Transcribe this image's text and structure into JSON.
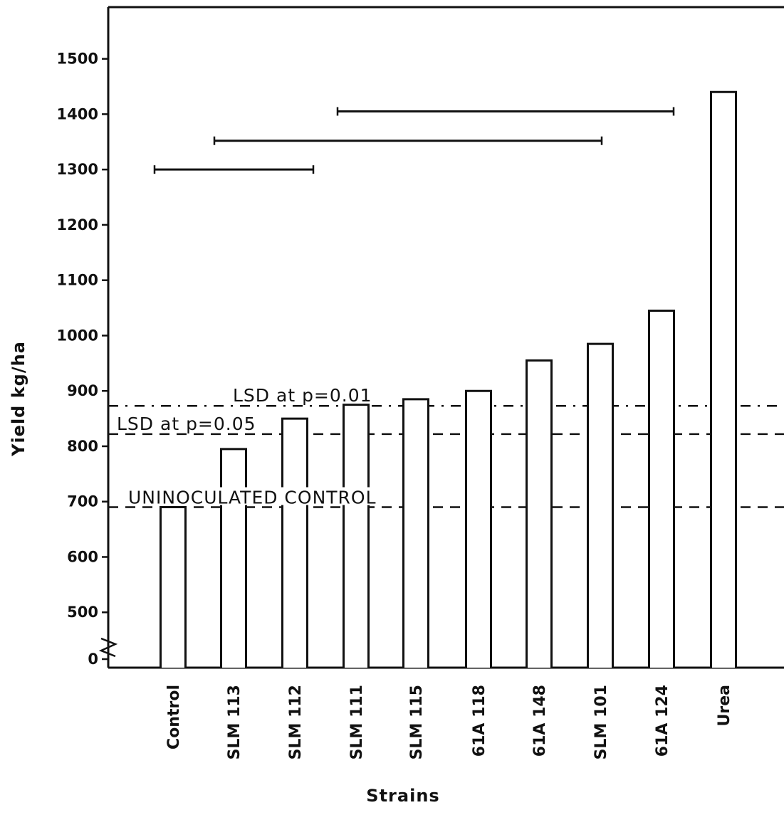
{
  "chart_data": {
    "type": "bar",
    "xlabel": "Strains",
    "ylabel": "Yield kg/ha",
    "y_axis_break": true,
    "y_ticks": [
      "0",
      "500",
      "600",
      "700",
      "800",
      "900",
      "1000",
      "1100",
      "1200",
      "1300",
      "1400",
      "1500"
    ],
    "y_tick_values": [
      400,
      500,
      600,
      700,
      800,
      900,
      1000,
      1100,
      1200,
      1300,
      1400,
      1500
    ],
    "categories": [
      "Control",
      "SLM 113",
      "SLM 112",
      "SLM 111",
      "SLM 115",
      "61A 118",
      "61A 148",
      "SLM 101",
      "61A 124",
      "Urea"
    ],
    "values": [
      690,
      795,
      850,
      875,
      885,
      900,
      955,
      985,
      1045,
      1440
    ],
    "reference_lines": [
      {
        "label": "LSD at p=0.01",
        "value": 873
      },
      {
        "label": "LSD at p=0.05",
        "value": 822
      },
      {
        "label": "UNINOCULATED CONTROL",
        "value": 690
      }
    ],
    "range_bars": [
      {
        "from": "Control",
        "to": "SLM 112",
        "value": 1300
      },
      {
        "from": "SLM 113",
        "to": "SLM 101",
        "value": 1352
      },
      {
        "from": "SLM 111",
        "to": "61A 124",
        "value": 1405
      }
    ],
    "grid": false
  }
}
